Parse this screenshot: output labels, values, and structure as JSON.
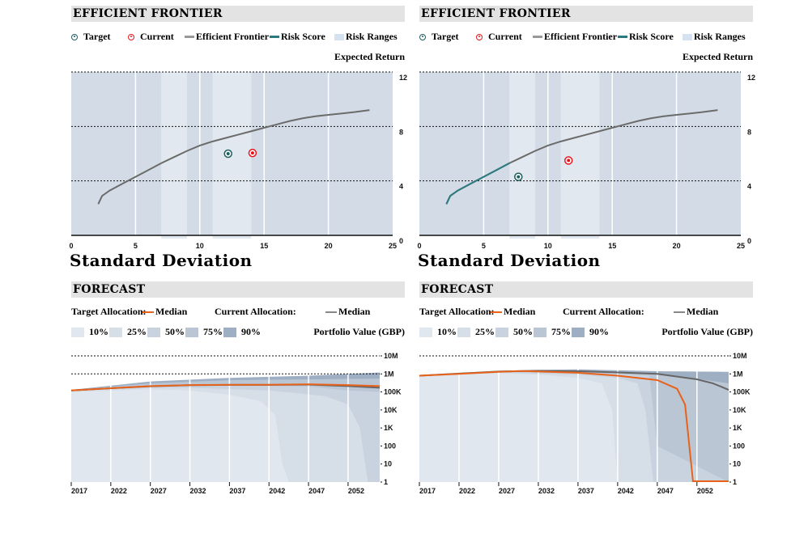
{
  "panels": [
    {
      "frontier_title": "EFFICIENT FRONTIER",
      "legend": {
        "target": "Target",
        "current": "Current",
        "frontier": "Efficient Frontier",
        "risk_score": "Risk Score",
        "risk_ranges": "Risk Ranges"
      },
      "forecast_title": "FORECAST",
      "forecast_legend": {
        "target_alloc": "Target Allocation:",
        "median1": "Median",
        "current_alloc": "Current Allocation:",
        "median2": "Median",
        "pcts": [
          "10%",
          "25%",
          "50%",
          "75%",
          "90%"
        ],
        "ylabel": "Portfolio Value (GBP)"
      }
    },
    {
      "frontier_title": "EFFICIENT FRONTIER",
      "legend": {
        "target": "Target",
        "current": "Current",
        "frontier": "Efficient Frontier",
        "risk_score": "Risk Score",
        "risk_ranges": "Risk Ranges"
      },
      "forecast_title": "FORECAST",
      "forecast_legend": {
        "target_alloc": "Target Allocation:",
        "median1": "Median",
        "current_alloc": "Current Allocation:",
        "median2": "Median",
        "pcts": [
          "10%",
          "25%",
          "50%",
          "75%",
          "90%"
        ],
        "ylabel": "Portfolio Value (GBP)"
      }
    }
  ],
  "colors": {
    "target": "#1f5f5f",
    "current": "#e8141c",
    "frontier": "#6b6b6b",
    "risk_score": "#2a7a7f",
    "band_dark": "#d3dce6",
    "band_light": "#e2e8ef",
    "median_target": "#e8621a",
    "median_current": "#666666",
    "pct": [
      "#e1e7ee",
      "#d6dee8",
      "#c9d3df",
      "#bac6d4",
      "#9eafc4"
    ]
  },
  "chart_data": [
    {
      "type": "line",
      "ylabel": "Expected Return",
      "xlabel": "Standard Deviation",
      "xlim": [
        0,
        25
      ],
      "ylim": [
        0,
        12
      ],
      "xticks": [
        0,
        5,
        10,
        15,
        20,
        25
      ],
      "yticks": [
        0,
        4,
        8,
        12
      ],
      "risk_ranges": [
        [
          7,
          9
        ],
        [
          11,
          14
        ]
      ],
      "frontier": [
        [
          2.1,
          2.3
        ],
        [
          2.4,
          2.9
        ],
        [
          3,
          3.3
        ],
        [
          4,
          3.8
        ],
        [
          5,
          4.3
        ],
        [
          6,
          4.8
        ],
        [
          7,
          5.3
        ],
        [
          8,
          5.75
        ],
        [
          9,
          6.2
        ],
        [
          10,
          6.6
        ],
        [
          11,
          6.9
        ],
        [
          12,
          7.15
        ],
        [
          13,
          7.4
        ],
        [
          14,
          7.65
        ],
        [
          15,
          7.9
        ],
        [
          16,
          8.15
        ],
        [
          17,
          8.4
        ],
        [
          18,
          8.6
        ],
        [
          19,
          8.75
        ],
        [
          20,
          8.85
        ],
        [
          21,
          8.95
        ],
        [
          22,
          9.05
        ],
        [
          23.2,
          9.2
        ]
      ],
      "risk_score_range": [
        9.2,
        10.9
      ],
      "target": [
        12.2,
        6.0
      ],
      "current": [
        14.1,
        6.05
      ]
    },
    {
      "type": "line",
      "ylabel": "Expected Return",
      "xlabel": "Standard Deviation",
      "xlim": [
        0,
        25
      ],
      "ylim": [
        0,
        12
      ],
      "xticks": [
        0,
        5,
        10,
        15,
        20,
        25
      ],
      "yticks": [
        0,
        4,
        8,
        12
      ],
      "risk_ranges": [
        [
          7,
          9
        ],
        [
          11,
          14
        ]
      ],
      "frontier": [
        [
          2.1,
          2.3
        ],
        [
          2.4,
          2.9
        ],
        [
          3,
          3.3
        ],
        [
          4,
          3.8
        ],
        [
          5,
          4.3
        ],
        [
          6,
          4.8
        ],
        [
          7,
          5.3
        ],
        [
          8,
          5.75
        ],
        [
          9,
          6.2
        ],
        [
          10,
          6.6
        ],
        [
          11,
          6.9
        ],
        [
          12,
          7.15
        ],
        [
          13,
          7.4
        ],
        [
          14,
          7.65
        ],
        [
          15,
          7.9
        ],
        [
          16,
          8.15
        ],
        [
          17,
          8.4
        ],
        [
          18,
          8.6
        ],
        [
          19,
          8.75
        ],
        [
          20,
          8.85
        ],
        [
          21,
          8.95
        ],
        [
          22,
          9.05
        ],
        [
          23.2,
          9.2
        ]
      ],
      "risk_score_range": [
        2.1,
        7.0
      ],
      "target": [
        7.7,
        4.3
      ],
      "current": [
        11.6,
        5.5
      ]
    },
    {
      "type": "area",
      "ylabel": "Portfolio Value (GBP)",
      "yscale": "log",
      "xlim": [
        2017,
        2056
      ],
      "ylim": [
        1,
        10000000
      ],
      "xticks": [
        2017,
        2022,
        2027,
        2032,
        2037,
        2042,
        2047,
        2052
      ],
      "yticks": [
        {
          "v": 10000000,
          "l": "10M"
        },
        {
          "v": 1000000,
          "l": "1M"
        },
        {
          "v": 100000,
          "l": "100K"
        },
        {
          "v": 10000,
          "l": "10K"
        },
        {
          "v": 1000,
          "l": "1K"
        },
        {
          "v": 100,
          "l": "100"
        },
        {
          "v": 10,
          "l": "10"
        },
        {
          "v": 1,
          "l": "1"
        }
      ],
      "percentiles": {
        "90%": [
          [
            2017,
            130000
          ],
          [
            2027,
            380000
          ],
          [
            2037,
            600000
          ],
          [
            2047,
            800000
          ],
          [
            2056,
            1200000
          ]
        ],
        "75%": [
          [
            2017,
            125000
          ],
          [
            2027,
            300000
          ],
          [
            2037,
            450000
          ],
          [
            2047,
            500000
          ],
          [
            2056,
            550000
          ]
        ],
        "50%": [
          [
            2017,
            120000
          ],
          [
            2027,
            230000
          ],
          [
            2037,
            240000
          ],
          [
            2047,
            200000
          ],
          [
            2052,
            120000
          ],
          [
            2056,
            100000
          ]
        ],
        "25%": [
          [
            2017,
            110000
          ],
          [
            2027,
            170000
          ],
          [
            2032,
            170000
          ],
          [
            2042,
            120000
          ],
          [
            2049,
            60000
          ],
          [
            2052,
            20000
          ],
          [
            2053.5,
            1000
          ],
          [
            2054.5,
            1
          ]
        ],
        "10%": [
          [
            2017,
            100000
          ],
          [
            2027,
            140000
          ],
          [
            2032,
            120000
          ],
          [
            2037,
            70000
          ],
          [
            2041,
            30000
          ],
          [
            2042.8,
            5000
          ],
          [
            2043.7,
            10
          ],
          [
            2044.5,
            1
          ]
        ]
      },
      "median_target": [
        [
          2017,
          120000
        ],
        [
          2022,
          160000
        ],
        [
          2027,
          210000
        ],
        [
          2032,
          240000
        ],
        [
          2037,
          250000
        ],
        [
          2042,
          250000
        ],
        [
          2047,
          265000
        ],
        [
          2052,
          240000
        ],
        [
          2056,
          210000
        ]
      ],
      "median_current": [
        [
          2017,
          120000
        ],
        [
          2022,
          160000
        ],
        [
          2027,
          205000
        ],
        [
          2032,
          235000
        ],
        [
          2037,
          245000
        ],
        [
          2042,
          245000
        ],
        [
          2047,
          255000
        ],
        [
          2052,
          210000
        ],
        [
          2056,
          170000
        ]
      ]
    },
    {
      "type": "area",
      "ylabel": "Portfolio Value (GBP)",
      "yscale": "log",
      "xlim": [
        2017,
        2056
      ],
      "ylim": [
        1,
        10000000
      ],
      "xticks": [
        2017,
        2022,
        2027,
        2032,
        2037,
        2042,
        2047,
        2052
      ],
      "yticks": [
        {
          "v": 10000000,
          "l": "10M"
        },
        {
          "v": 1000000,
          "l": "1M"
        },
        {
          "v": 100000,
          "l": "100K"
        },
        {
          "v": 10000,
          "l": "10K"
        },
        {
          "v": 1000,
          "l": "1K"
        },
        {
          "v": 100,
          "l": "100"
        },
        {
          "v": 10,
          "l": "10"
        },
        {
          "v": 1,
          "l": "1"
        }
      ],
      "percentiles": {
        "90%": [
          [
            2017,
            850000
          ],
          [
            2027,
            1500000
          ],
          [
            2037,
            1800000
          ],
          [
            2047,
            1400000
          ],
          [
            2056,
            1300000
          ]
        ],
        "75%": [
          [
            2017,
            830000
          ],
          [
            2027,
            1400000
          ],
          [
            2037,
            1500000
          ],
          [
            2047,
            1100000
          ],
          [
            2056,
            300000
          ]
        ],
        "50%": [
          [
            2017,
            800000
          ],
          [
            2027,
            1300000
          ],
          [
            2037,
            1200000
          ],
          [
            2042,
            1000000
          ],
          [
            2046,
            800000
          ],
          [
            2047,
            100
          ],
          [
            2056,
            1
          ]
        ],
        "25%": [
          [
            2017,
            780000
          ],
          [
            2027,
            1200000
          ],
          [
            2037,
            900000
          ],
          [
            2042,
            600000
          ],
          [
            2044.5,
            300000
          ],
          [
            2045.5,
            10000
          ],
          [
            2046.5,
            1
          ]
        ],
        "10%": [
          [
            2017,
            760000
          ],
          [
            2027,
            1100000
          ],
          [
            2032,
            900000
          ],
          [
            2037,
            600000
          ],
          [
            2040,
            300000
          ],
          [
            2041.3,
            10000
          ],
          [
            2042,
            1
          ]
        ]
      },
      "median_target": [
        [
          2017,
          800000
        ],
        [
          2022,
          1000000
        ],
        [
          2027,
          1300000
        ],
        [
          2030,
          1450000
        ],
        [
          2032,
          1350000
        ],
        [
          2037,
          1150000
        ],
        [
          2042,
          800000
        ],
        [
          2047,
          450000
        ],
        [
          2049.5,
          150000
        ],
        [
          2050.5,
          20000
        ],
        [
          2051.5,
          1
        ],
        [
          2056,
          1
        ]
      ],
      "median_current": [
        [
          2017,
          800000
        ],
        [
          2022,
          1050000
        ],
        [
          2027,
          1350000
        ],
        [
          2032,
          1500000
        ],
        [
          2037,
          1400000
        ],
        [
          2042,
          1200000
        ],
        [
          2047,
          1000000
        ],
        [
          2052,
          500000
        ],
        [
          2054,
          300000
        ],
        [
          2055,
          200000
        ],
        [
          2056,
          130000
        ]
      ]
    }
  ]
}
